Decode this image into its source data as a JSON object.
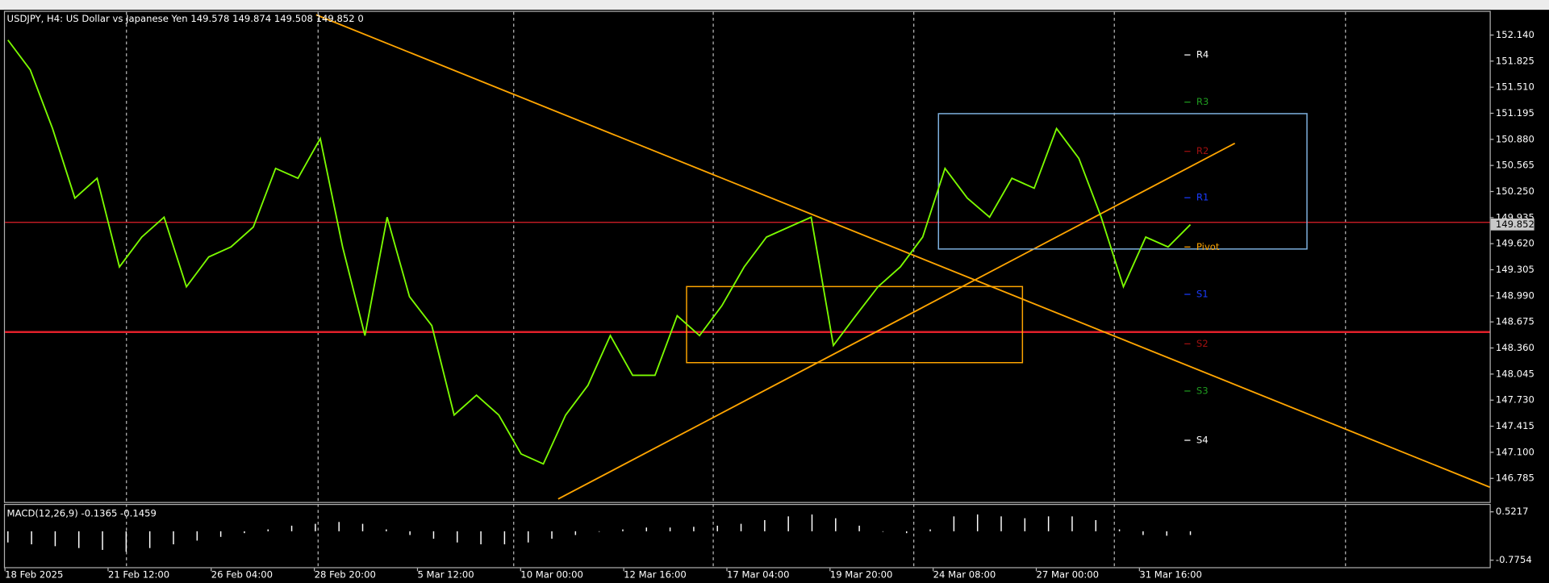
{
  "chart_data": [
    {
      "type": "line",
      "title": "USDJPY, H4:  US Dollar vs Japanese Yen  149.578 149.874 149.508 149.852  0",
      "color": "#7CFC00",
      "values": [
        152.08,
        151.72,
        151.01,
        150.17,
        150.41,
        149.34,
        149.7,
        149.94,
        149.1,
        149.46,
        149.58,
        149.82,
        150.53,
        150.41,
        150.89,
        149.58,
        148.51,
        149.94,
        148.98,
        148.63,
        147.55,
        147.79,
        147.55,
        147.08,
        146.96,
        147.55,
        147.91,
        148.51,
        148.03,
        148.03,
        148.75,
        148.51,
        148.87,
        149.34,
        149.7,
        149.82,
        149.94,
        148.39,
        148.75,
        149.1,
        149.34,
        149.7,
        150.53,
        150.17,
        149.94,
        150.41,
        150.29,
        151.01,
        150.65,
        149.94,
        149.1,
        149.7,
        149.58,
        149.85
      ],
      "time_labels": [
        "18 Feb 2025",
        "21 Feb 12:00",
        "26 Feb 04:00",
        "28 Feb 20:00",
        "5 Mar 12:00",
        "10 Mar 00:00",
        "12 Mar 16:00",
        "17 Mar 04:00",
        "19 Mar 20:00",
        "24 Mar 08:00",
        "27 Mar 00:00",
        "31 Mar 16:00"
      ],
      "ylim": [
        146.5,
        152.42
      ],
      "yticks": [
        {
          "value": 152.14,
          "label": "152.140"
        },
        151.825,
        {
          "value": 151.51,
          "label": "151.510"
        },
        151.195,
        {
          "value": 150.88,
          "label": "150.880"
        },
        150.565,
        {
          "value": 150.25,
          "label": "150.250"
        },
        149.935,
        {
          "value": 149.62,
          "label": "149.620"
        },
        149.305,
        {
          "value": 148.99,
          "label": "148.990"
        },
        148.675,
        {
          "value": 148.36,
          "label": "148.360"
        },
        148.045,
        {
          "value": 147.73,
          "label": "147.730"
        },
        147.415,
        {
          "value": 147.1,
          "label": "147.100"
        },
        146.785
      ],
      "last_price": 149.852,
      "pivots": [
        {
          "label": "R4",
          "value": 151.9,
          "color": "#ffffff"
        },
        {
          "label": "R3",
          "value": 151.33,
          "color": "#1f9a1f"
        },
        {
          "label": "R2",
          "value": 150.735,
          "color": "#a01010"
        },
        {
          "label": "R1",
          "value": 150.175,
          "color": "#1a3cff"
        },
        {
          "label": "Pivot",
          "value": 149.58,
          "color": "#ffa500"
        },
        {
          "label": "S1",
          "value": 149.008,
          "color": "#1a3cff"
        },
        {
          "label": "S2",
          "value": 148.41,
          "color": "#a01010"
        },
        {
          "label": "S3",
          "value": 147.84,
          "color": "#1f9a1f"
        },
        {
          "label": "S4",
          "value": 147.245,
          "color": "#ffffff"
        }
      ]
    },
    {
      "type": "bar",
      "title": "MACD(12,26,9) -0.1365 -0.1459",
      "color": "#ffffff",
      "values": [
        -0.3,
        -0.35,
        -0.4,
        -0.45,
        -0.5,
        -0.55,
        -0.45,
        -0.35,
        -0.25,
        -0.15,
        -0.05,
        0.05,
        0.15,
        0.2,
        0.25,
        0.2,
        0.05,
        -0.1,
        -0.2,
        -0.3,
        -0.35,
        -0.35,
        -0.3,
        -0.2,
        -0.1,
        0,
        0.05,
        0.1,
        0.1,
        0.12,
        0.15,
        0.2,
        0.3,
        0.4,
        0.45,
        0.35,
        0.15,
        0,
        -0.05,
        0.05,
        0.4,
        0.45,
        0.4,
        0.35,
        0.4,
        0.4,
        0.3,
        0.05,
        -0.1,
        -0.12,
        -0.1
      ],
      "ylim": [
        -0.99,
        0.68
      ],
      "yticks": [
        0.5217,
        -0.7754
      ]
    }
  ]
}
